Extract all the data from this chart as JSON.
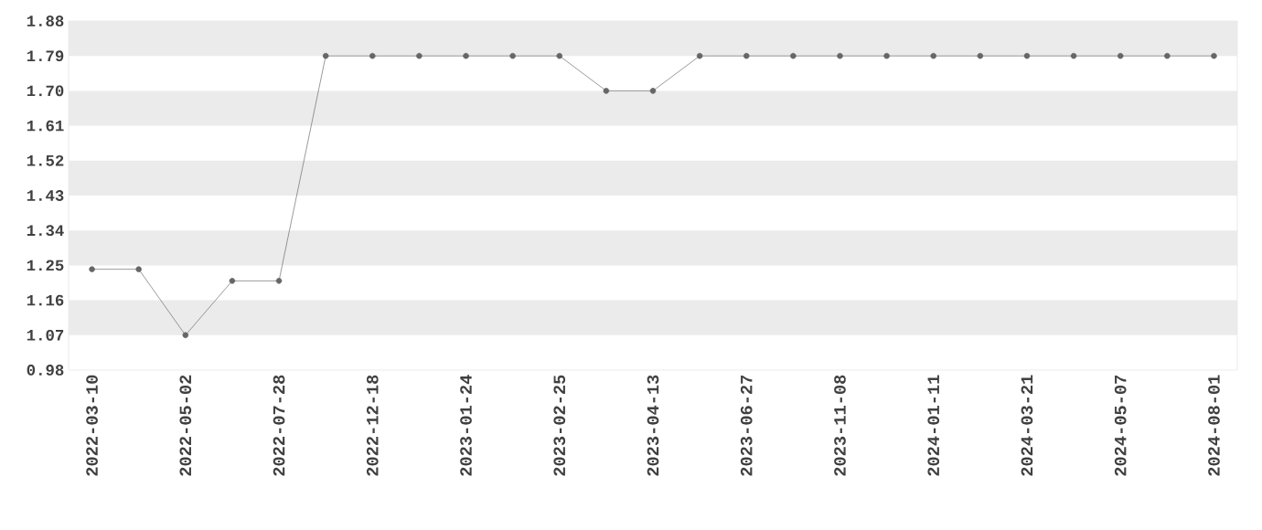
{
  "chart_data": {
    "type": "line",
    "categories": [
      "2022-03-10",
      null,
      "2022-05-02",
      null,
      "2022-07-28",
      null,
      "2022-12-18",
      null,
      "2023-01-24",
      null,
      "2023-02-25",
      null,
      "2023-04-13",
      null,
      "2023-06-27",
      null,
      "2023-11-08",
      null,
      "2024-01-11",
      null,
      "2024-03-21",
      null,
      "2024-05-07",
      null,
      "2024-08-01"
    ],
    "values": [
      1.24,
      1.24,
      1.07,
      1.21,
      1.21,
      1.79,
      1.79,
      1.79,
      1.79,
      1.79,
      1.79,
      1.7,
      1.7,
      1.79,
      1.79,
      1.79,
      1.79,
      1.79,
      1.79,
      1.79,
      1.79,
      1.79,
      1.79,
      1.79,
      1.79
    ],
    "color": "#666666",
    "ylim": [
      0.98,
      1.88
    ],
    "yticks": [
      0.98,
      1.07,
      1.16,
      1.25,
      1.34,
      1.43,
      1.52,
      1.61,
      {
        "value": 1.7,
        "label": "1.70"
      },
      1.79,
      1.88
    ],
    "bands": [
      {
        "axis": "y",
        "from": 1.07,
        "to": 1.16,
        "color": "#ebebeb"
      },
      {
        "axis": "y",
        "from": 1.25,
        "to": 1.34,
        "color": "#ebebeb"
      },
      {
        "axis": "y",
        "from": 1.43,
        "to": 1.52,
        "color": "#ebebeb"
      },
      {
        "axis": "y",
        "from": 1.61,
        "to": 1.7,
        "color": "#ebebeb"
      },
      {
        "axis": "y",
        "from": 1.79,
        "to": 1.88,
        "color": "#ebebeb"
      }
    ],
    "marker": "circle",
    "line_style": "solid"
  }
}
